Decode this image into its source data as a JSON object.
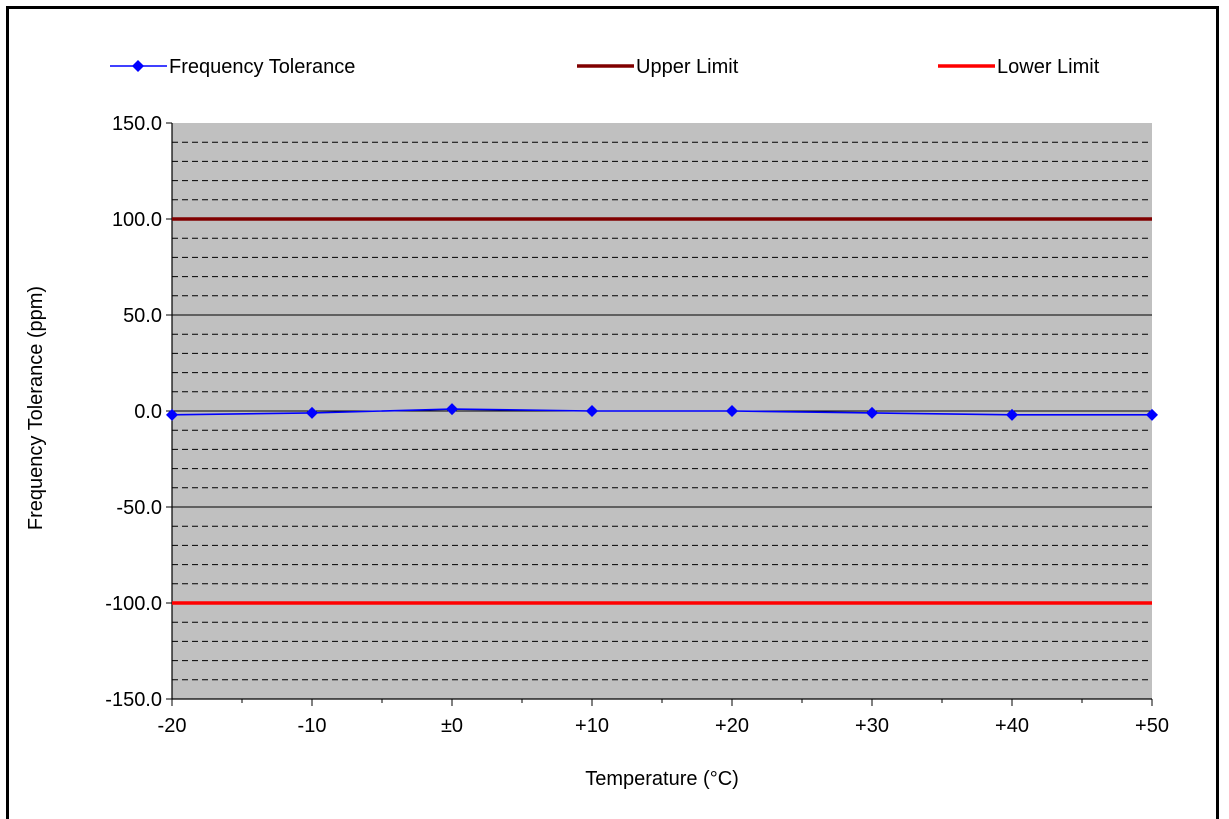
{
  "chart_data": {
    "type": "line",
    "title": "",
    "xlabel": "Temperature (°C)",
    "ylabel": "Frequency Tolerance (ppm)",
    "categories": [
      "-20",
      "-10",
      "±0",
      "+10",
      "+20",
      "+30",
      "+40",
      "+50"
    ],
    "ylim": [
      -150,
      150
    ],
    "y_ticks": [
      "150.0",
      "100.0",
      "50.0",
      "0.0",
      "-50.0",
      "-100.0",
      "-150.0"
    ],
    "y_tick_values": [
      150,
      100,
      50,
      0,
      -50,
      -100,
      -150
    ],
    "major_grid_step": 50,
    "minor_grid_step": 10,
    "grid": true,
    "legend_position": "top",
    "series": [
      {
        "name": "Frequency Tolerance",
        "values": [
          -2.0,
          -1.0,
          1.0,
          0.0,
          0.0,
          -1.0,
          -2.0,
          -2.0
        ],
        "color": "#0000ff",
        "marker": "diamond"
      },
      {
        "name": "Upper Limit",
        "values": [
          100,
          100,
          100,
          100,
          100,
          100,
          100,
          100
        ],
        "color": "#800000",
        "marker": "none"
      },
      {
        "name": "Lower Limit",
        "values": [
          -100,
          -100,
          -100,
          -100,
          -100,
          -100,
          -100,
          -100
        ],
        "color": "#ff0000",
        "marker": "none"
      }
    ],
    "plot_background": "#c0c0c0"
  }
}
